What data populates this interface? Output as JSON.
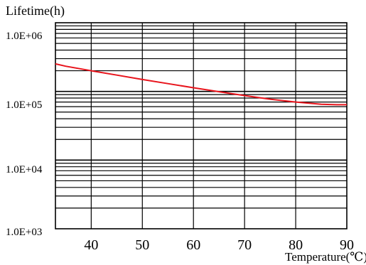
{
  "chart_data": {
    "type": "line",
    "ylabel": "Lifetime(h)",
    "xlabel": "Temperature(℃)",
    "x_scale": "linear",
    "y_scale": "log",
    "xlim": [
      33,
      90
    ],
    "ylim": [
      1000,
      1000000
    ],
    "x_ticks": [
      40,
      50,
      60,
      70,
      80,
      90
    ],
    "x_tick_labels": [
      "40",
      "50",
      "60",
      "70",
      "80",
      "90"
    ],
    "y_tick_labels": [
      "1.0E+06",
      "1.0E+05",
      "1.0E+04",
      "1.0E+03"
    ],
    "grid": true,
    "line_color": "#e8141c",
    "series": [
      {
        "x": [
          33,
          35,
          40,
          45,
          50,
          55,
          60,
          65,
          70,
          75,
          80,
          85,
          88,
          90
        ],
        "y": [
          252000,
          233000,
          200000,
          173000,
          149000,
          130000,
          113000,
          99000,
          87000,
          77000,
          70000,
          65000,
          64000,
          64000
        ]
      }
    ]
  }
}
